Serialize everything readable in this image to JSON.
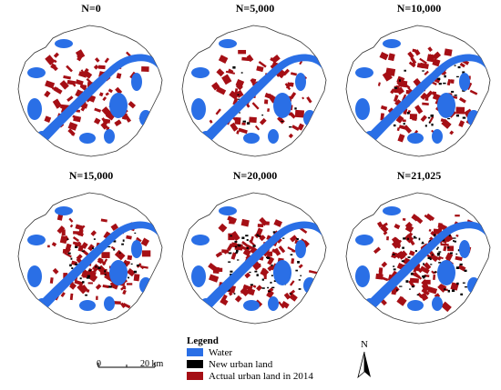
{
  "panels": [
    {
      "title": "N=0"
    },
    {
      "title": "N=5,000"
    },
    {
      "title": "N=10,000"
    },
    {
      "title": "N=15,000"
    },
    {
      "title": "N=20,000"
    },
    {
      "title": "N=21,025"
    }
  ],
  "legend": {
    "title": "Legend",
    "items": [
      {
        "label": "Water",
        "color": "#2a6fe6"
      },
      {
        "label": "New urban land",
        "color": "#000000"
      },
      {
        "label": "Actual urban land in 2014",
        "color": "#a50f15"
      }
    ]
  },
  "scale": {
    "left_label": "0",
    "right_label": "20 km"
  },
  "north": {
    "label": "N"
  },
  "colors": {
    "water": "#2a6fe6",
    "urban": "#a50f15",
    "new_urban": "#000000",
    "outline": "#333333"
  }
}
